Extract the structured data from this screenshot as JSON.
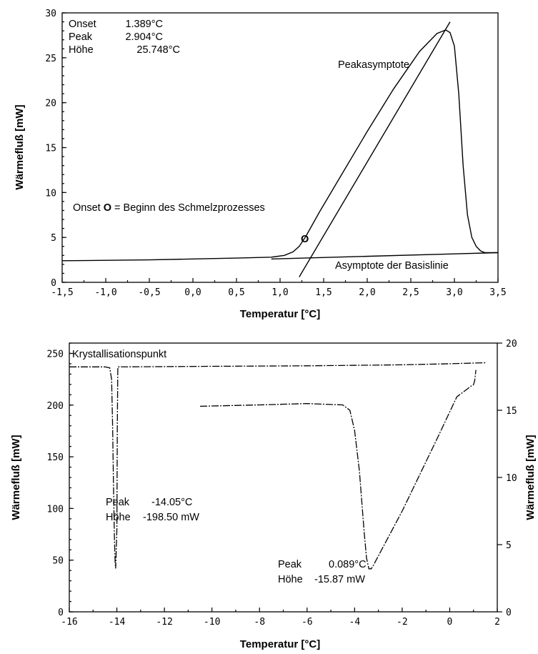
{
  "chart_data": [
    {
      "type": "line",
      "xlabel": "Temperatur [°C]",
      "ylabel": "Wärmefluß [mW]",
      "xlim": [
        -1.5,
        3.5
      ],
      "ylim": [
        0,
        30
      ],
      "xticks": [
        -1.5,
        -1.0,
        -0.5,
        0.0,
        0.5,
        1.0,
        1.5,
        2.0,
        2.5,
        3.0,
        3.5
      ],
      "xtick_labels": [
        "-1,5",
        "-1,0",
        "-0,5",
        "0,0",
        "0,5",
        "1,0",
        "1,5",
        "2,0",
        "2,5",
        "3,0",
        "3,5"
      ],
      "yticks": [
        0,
        5,
        10,
        15,
        20,
        25,
        30
      ],
      "ytick_labels": [
        "0",
        "5",
        "10",
        "15",
        "20",
        "25",
        "30"
      ],
      "grid": false,
      "series": [
        {
          "x": [
            -1.5,
            -0.5,
            0.0,
            0.5,
            0.9,
            1.05,
            1.15,
            1.22,
            1.3,
            1.45,
            1.7,
            2.0,
            2.3,
            2.6,
            2.8,
            2.9,
            2.95,
            3.0,
            3.05,
            3.1,
            3.15,
            3.2,
            3.25,
            3.3,
            3.35,
            3.5
          ],
          "y": [
            2.4,
            2.5,
            2.6,
            2.7,
            2.8,
            3.0,
            3.4,
            4.0,
            5.2,
            7.8,
            11.9,
            16.8,
            21.5,
            25.7,
            27.7,
            28.1,
            27.8,
            26.3,
            21.0,
            13.0,
            7.5,
            5.0,
            4.0,
            3.5,
            3.3,
            3.3
          ]
        },
        {
          "x": [
            0.9,
            3.5
          ],
          "y": [
            2.6,
            3.3
          ]
        },
        {
          "x": [
            1.22,
            2.95
          ],
          "y": [
            0.6,
            29.0
          ]
        }
      ],
      "annotations": {
        "onset_label": "Onset",
        "onset_value": "1.389°C",
        "peak_label": "Peak",
        "peak_value": "2.904°C",
        "hoehe_label": "Höhe",
        "hoehe_value": "25.748°C",
        "peakasymptote": "Peakasymptote",
        "onset_desc_prefix": "Onset ",
        "onset_desc_letter": "O",
        "onset_desc_suffix": " = Beginn des Schmelzprozesses",
        "marker_letter": "O",
        "baseline": "Asymptote der Basislinie"
      }
    },
    {
      "type": "line",
      "xlabel": "Temperatur [°C]",
      "ylabel": "Wärmefluß [mW]",
      "ylabel_right": "Wärmefluß [mW]",
      "xlim": [
        -16,
        2
      ],
      "ylim": [
        0,
        260
      ],
      "ylim_right": [
        0,
        20
      ],
      "xticks": [
        -16,
        -14,
        -12,
        -10,
        -8,
        -6,
        -4,
        -2,
        0,
        2
      ],
      "xtick_labels": [
        "-16",
        "-14",
        "-12",
        "-10",
        "-8",
        "-6",
        "-4",
        "-2",
        "0",
        "2"
      ],
      "yticks": [
        0,
        50,
        100,
        150,
        200,
        250
      ],
      "ytick_labels": [
        "0",
        "50",
        "100",
        "150",
        "200",
        "250"
      ],
      "yticks_right": [
        0,
        5,
        10,
        15,
        20
      ],
      "ytick_labels_right": [
        "0",
        "5",
        "10",
        "15",
        "20"
      ],
      "grid": false,
      "series": [
        {
          "axis": "left",
          "x": [
            -16,
            -14.5,
            -14.3,
            -14.22,
            -14.18,
            -14.14,
            -14.1,
            -14.07,
            -14.05,
            -14.0,
            -13.98,
            -13.96,
            -13.9,
            -10,
            -6,
            -2,
            0,
            1.5
          ],
          "y": [
            237,
            237,
            236,
            225,
            180,
            120,
            70,
            47,
            42,
            80,
            180,
            237,
            237,
            237.5,
            238,
            239,
            240,
            241
          ]
        },
        {
          "axis": "right",
          "x": [
            -10.5,
            -8,
            -6,
            -4.5,
            -4.2,
            -4.0,
            -3.8,
            -3.6,
            -3.5,
            -3.4,
            -3.3,
            -3.2,
            -2.0,
            -0.5,
            0.3,
            0.9,
            1.0,
            1.05,
            1.1
          ],
          "y": [
            15.3,
            15.4,
            15.5,
            15.4,
            15.0,
            13.5,
            10.5,
            6.0,
            4.0,
            3.2,
            3.2,
            3.5,
            7.5,
            13.0,
            16.0,
            16.8,
            16.9,
            17.2,
            18.0
          ]
        }
      ],
      "annotations": {
        "title": "Krystallisationspunkt",
        "peak1_label": "Peak",
        "peak1_value": "-14.05°C",
        "hoehe1_label": "Höhe",
        "hoehe1_value": "-198.50 mW",
        "peak2_label": "Peak",
        "peak2_value": "0.089°C",
        "hoehe2_label": "Höhe",
        "hoehe2_value": "-15.87 mW"
      }
    }
  ]
}
